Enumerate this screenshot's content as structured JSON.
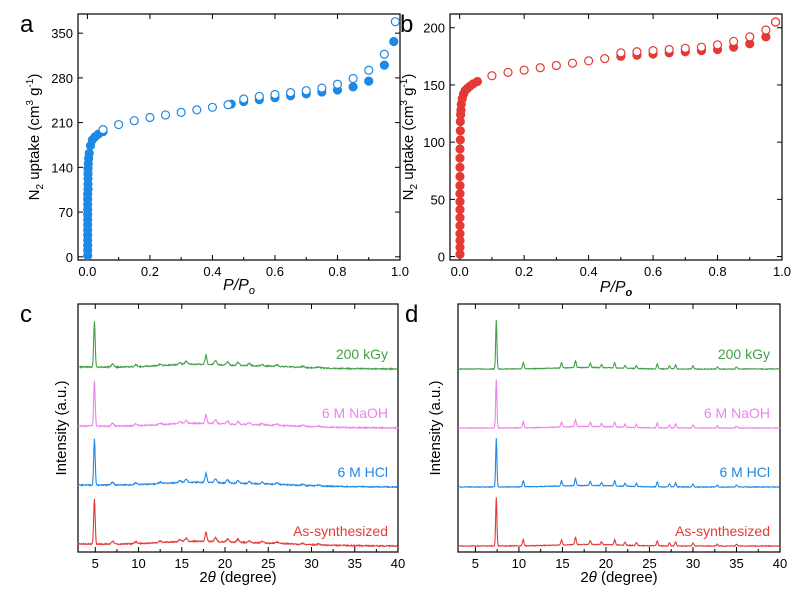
{
  "chart_data": [
    {
      "panel": "a",
      "type": "scatter",
      "xlabel": "P/P",
      "xlabel_sub": "o",
      "ylabel": "N",
      "ylabel_sub": "2",
      "ylabel_rest": " uptake (cm",
      "ylabel_sup1": "3",
      "ylabel_mid": " g",
      "ylabel_sup2": "-1",
      "ylabel_end": ")",
      "xlim": [
        -0.03,
        1.0
      ],
      "ylim": [
        -5,
        380
      ],
      "xticks": [
        0.0,
        0.2,
        0.4,
        0.6,
        0.8,
        1.0
      ],
      "xtick_labels": [
        "0.0",
        "0.2",
        "0.4",
        "0.6",
        "0.8",
        "1.0"
      ],
      "yticks": [
        0,
        70,
        140,
        210,
        280,
        350
      ],
      "ytick_labels": [
        "0",
        "70",
        "140",
        "210",
        "280",
        "350"
      ],
      "color": "#1e88e5",
      "series": [
        {
          "role": "adsorption",
          "marker": "filled",
          "x": [
            0.001,
            0.001,
            0.001,
            0.001,
            0.001,
            0.001,
            0.001,
            0.001,
            0.001,
            0.001,
            0.001,
            0.001,
            0.001,
            0.002,
            0.002,
            0.002,
            0.002,
            0.002,
            0.003,
            0.004,
            0.006,
            0.01,
            0.016,
            0.025,
            0.035,
            0.05,
            0.46,
            0.5,
            0.55,
            0.6,
            0.65,
            0.7,
            0.75,
            0.8,
            0.85,
            0.9,
            0.95,
            0.98
          ],
          "y": [
            2,
            10,
            18,
            26,
            34,
            42,
            50,
            58,
            66,
            74,
            82,
            90,
            98,
            106,
            114,
            122,
            130,
            138,
            146,
            154,
            162,
            174,
            183,
            188,
            192,
            196,
            239,
            243,
            246,
            249,
            252,
            255,
            258,
            261,
            266,
            275,
            300,
            337
          ]
        },
        {
          "role": "desorption",
          "marker": "open",
          "x": [
            0.05,
            0.1,
            0.15,
            0.2,
            0.25,
            0.3,
            0.35,
            0.4,
            0.45,
            0.5,
            0.55,
            0.6,
            0.65,
            0.7,
            0.75,
            0.8,
            0.85,
            0.9,
            0.95,
            0.985
          ],
          "y": [
            199,
            207,
            213,
            218,
            222,
            226,
            230,
            234,
            238,
            247,
            251,
            254,
            257,
            260,
            264,
            270,
            279,
            292,
            317,
            368
          ]
        }
      ]
    },
    {
      "panel": "b",
      "type": "scatter",
      "xlabel": "P/P",
      "xlabel_sub": "o",
      "ylabel": "N",
      "ylabel_sub": "2",
      "ylabel_rest": " uptake (cm",
      "ylabel_sup1": "3",
      "ylabel_mid": " g",
      "ylabel_sup2": "-1",
      "ylabel_end": ")",
      "xlim": [
        -0.03,
        1.0
      ],
      "ylim": [
        -3,
        212
      ],
      "xticks": [
        0.0,
        0.2,
        0.4,
        0.6,
        0.8,
        1.0
      ],
      "xtick_labels": [
        "0.0",
        "0.2",
        "0.4",
        "0.6",
        "0.8",
        "1.0"
      ],
      "yticks": [
        0,
        50,
        100,
        150,
        200
      ],
      "ytick_labels": [
        "0",
        "50",
        "100",
        "150",
        "200"
      ],
      "color": "#e53935",
      "series": [
        {
          "role": "adsorption",
          "marker": "filled",
          "x": [
            0.001,
            0.001,
            0.001,
            0.001,
            0.001,
            0.001,
            0.001,
            0.001,
            0.001,
            0.001,
            0.001,
            0.001,
            0.001,
            0.001,
            0.002,
            0.002,
            0.002,
            0.003,
            0.004,
            0.005,
            0.008,
            0.012,
            0.017,
            0.024,
            0.032,
            0.042,
            0.055,
            0.5,
            0.55,
            0.6,
            0.65,
            0.7,
            0.75,
            0.8,
            0.85,
            0.9,
            0.95,
            0.98
          ],
          "y": [
            2,
            8,
            14,
            20,
            27,
            34,
            41,
            48,
            55,
            62,
            70,
            78,
            86,
            94,
            102,
            110,
            118,
            124,
            128,
            133,
            138,
            142,
            145,
            147,
            149,
            151,
            153,
            175,
            176,
            177,
            178,
            179,
            180,
            181,
            183,
            186,
            192,
            205
          ]
        },
        {
          "role": "desorption",
          "marker": "open",
          "x": [
            0.1,
            0.15,
            0.2,
            0.25,
            0.3,
            0.35,
            0.4,
            0.45,
            0.5,
            0.55,
            0.6,
            0.65,
            0.7,
            0.75,
            0.8,
            0.85,
            0.9,
            0.95,
            0.98
          ],
          "y": [
            158,
            161,
            163,
            165,
            167,
            169,
            171,
            173,
            178,
            179,
            180,
            181,
            182,
            183,
            185,
            188,
            192,
            198,
            205
          ]
        }
      ]
    },
    {
      "panel": "c",
      "type": "line",
      "xlabel_prefix": "2",
      "xlabel_theta": "θ",
      "xlabel_suffix": " (degree)",
      "ylabel": "Intensity (a.u.)",
      "xlim": [
        3,
        40
      ],
      "xticks": [
        5,
        10,
        15,
        20,
        25,
        30,
        35,
        40
      ],
      "xtick_labels": [
        "5",
        "10",
        "15",
        "20",
        "25",
        "30",
        "35",
        "40"
      ],
      "baseline_tilt": 2,
      "noise_amp": 0.6,
      "broad_bumps": [
        [
          16,
          5,
          3
        ],
        [
          24,
          6,
          2
        ]
      ],
      "peaks": [
        [
          4.9,
          45,
          0.12
        ],
        [
          7.0,
          3,
          0.2
        ],
        [
          9.7,
          2,
          0.2
        ],
        [
          12.5,
          1.5,
          0.2
        ],
        [
          14.8,
          2,
          0.2
        ],
        [
          15.5,
          3,
          0.2
        ],
        [
          17.8,
          9,
          0.15
        ],
        [
          18.9,
          4,
          0.2
        ],
        [
          20.3,
          3,
          0.2
        ],
        [
          21.5,
          3,
          0.2
        ],
        [
          22.8,
          2,
          0.2
        ],
        [
          24.3,
          1.5,
          0.2
        ],
        [
          26.0,
          1.5,
          0.2
        ],
        [
          29.0,
          1.2,
          0.2
        ],
        [
          30.8,
          1,
          0.2
        ]
      ],
      "series": [
        {
          "name": "200 kGy",
          "color": "#43a047",
          "offset": 0
        },
        {
          "name": "6 M NaOH",
          "color": "#ee82ee",
          "offset": 1
        },
        {
          "name": "6 M HCl",
          "color": "#1e88e5",
          "offset": 2
        },
        {
          "name": "As-synthesized",
          "color": "#e53935",
          "offset": 3
        }
      ]
    },
    {
      "panel": "d",
      "type": "line",
      "xlabel_prefix": "2",
      "xlabel_theta": "θ",
      "xlabel_suffix": " (degree)",
      "ylabel": "Intensity (a.u.)",
      "xlim": [
        3,
        40
      ],
      "xticks": [
        5,
        10,
        15,
        20,
        25,
        30,
        35,
        40
      ],
      "xtick_labels": [
        "5",
        "10",
        "15",
        "20",
        "25",
        "30",
        "35",
        "40"
      ],
      "baseline_tilt": 0,
      "noise_amp": 0.35,
      "broad_bumps": [
        [
          18,
          5,
          1.5
        ]
      ],
      "peaks": [
        [
          7.4,
          48,
          0.1
        ],
        [
          10.5,
          6,
          0.12
        ],
        [
          14.9,
          5,
          0.12
        ],
        [
          16.5,
          7,
          0.12
        ],
        [
          18.2,
          4,
          0.12
        ],
        [
          19.5,
          3,
          0.12
        ],
        [
          21.0,
          5,
          0.12
        ],
        [
          22.2,
          3,
          0.12
        ],
        [
          23.5,
          3,
          0.12
        ],
        [
          25.9,
          5,
          0.12
        ],
        [
          27.3,
          3,
          0.12
        ],
        [
          28.0,
          4,
          0.12
        ],
        [
          30.0,
          3,
          0.12
        ],
        [
          32.8,
          2,
          0.12
        ],
        [
          35.0,
          2,
          0.12
        ]
      ],
      "series": [
        {
          "name": "200 kGy",
          "color": "#43a047",
          "offset": 0
        },
        {
          "name": "6 M NaOH",
          "color": "#ee82ee",
          "offset": 1
        },
        {
          "name": "6 M HCl",
          "color": "#1e88e5",
          "offset": 2
        },
        {
          "name": "As-synthesized",
          "color": "#e53935",
          "offset": 3
        }
      ]
    }
  ],
  "panel_labels": [
    "a",
    "b",
    "c",
    "d"
  ]
}
